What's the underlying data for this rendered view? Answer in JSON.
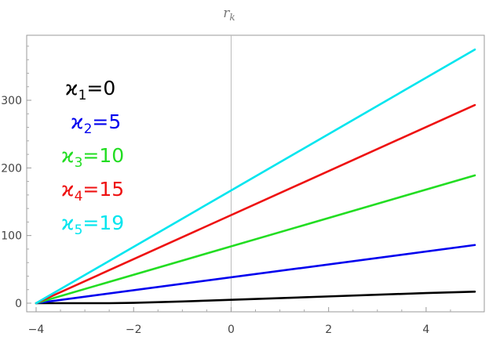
{
  "chart_data": {
    "type": "line",
    "title": "r",
    "title_subscript": "k",
    "xlabel": "",
    "ylabel": "",
    "xlim": [
      -4,
      5
    ],
    "ylim": [
      -15,
      385
    ],
    "x_ticks": [
      -4,
      -2,
      0,
      2,
      4
    ],
    "x_tick_labels": [
      "−4",
      "−2",
      "0",
      "2",
      "4"
    ],
    "y_ticks": [
      0,
      100,
      200,
      300
    ],
    "y_tick_labels": [
      "0",
      "100",
      "200",
      "300"
    ],
    "grid": false,
    "legend_position": "top-left",
    "series": [
      {
        "name": "ϰ1=0",
        "label_main": "ϰ",
        "label_sub": "1",
        "label_rest": "=0",
        "color": "#000000",
        "x": [
          -4,
          -3,
          -2.5,
          -2,
          -1,
          0,
          1,
          2,
          3,
          4,
          5
        ],
        "y": [
          0,
          0,
          0,
          0.5,
          2.5,
          5,
          7.5,
          10,
          12.5,
          15,
          17
        ]
      },
      {
        "name": "ϰ2=5",
        "label_main": "ϰ",
        "label_sub": "2",
        "label_rest": "=5",
        "color": "#0000ee",
        "x": [
          -4,
          5
        ],
        "y": [
          0,
          86
        ]
      },
      {
        "name": "ϰ3=10",
        "label_main": "ϰ",
        "label_sub": "3",
        "label_rest": "=10",
        "color": "#22dd22",
        "x": [
          -4,
          5
        ],
        "y": [
          0,
          189
        ]
      },
      {
        "name": "ϰ4=15",
        "label_main": "ϰ",
        "label_sub": "4",
        "label_rest": "=15",
        "color": "#ee1111",
        "x": [
          -4,
          5
        ],
        "y": [
          0,
          293
        ]
      },
      {
        "name": "ϰ5=19",
        "label_main": "ϰ",
        "label_sub": "5",
        "label_rest": "=19",
        "color": "#00e5ee",
        "x": [
          -4,
          5
        ],
        "y": [
          0,
          375
        ]
      }
    ]
  }
}
